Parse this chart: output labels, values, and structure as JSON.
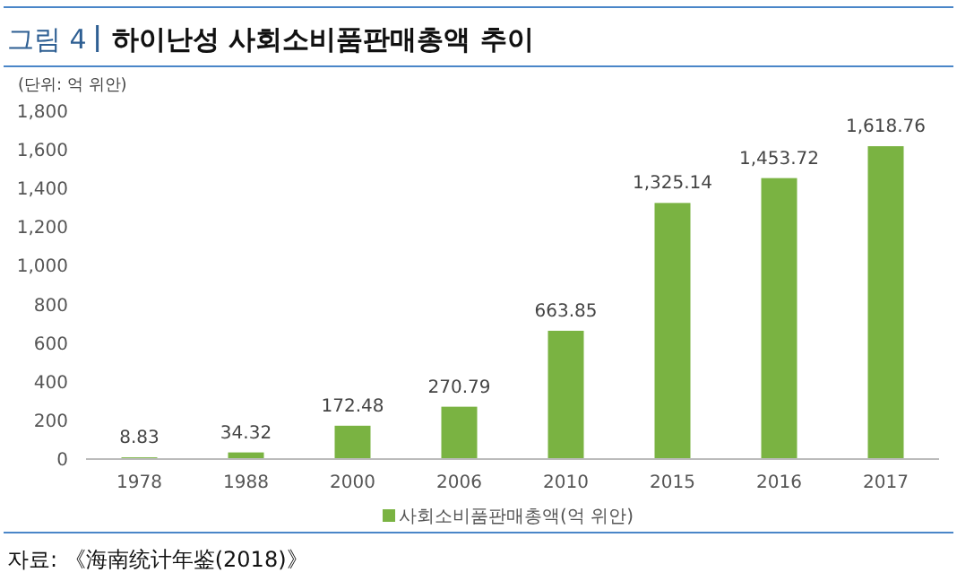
{
  "chart_data": {
    "type": "bar",
    "title": "하이난성 사회소비품판매총액 추이",
    "ylabel": "(단위: 억 위안)",
    "annotations": [
      "그림 4",
      "자료: 《海南统计年鉴(2018)》"
    ],
    "categories": [
      "1978",
      "1988",
      "2000",
      "2006",
      "2010",
      "2015",
      "2016",
      "2017"
    ],
    "series": [
      {
        "name": "사회소비품판매총액(억 위안)",
        "color": "#7ab342",
        "values": [
          8.83,
          34.32,
          172.48,
          270.79,
          663.85,
          1325.14,
          1453.72,
          1618.76
        ],
        "value_labels": [
          "8.83",
          "34.32",
          "172.48",
          "270.79",
          "663.85",
          "1,325.14",
          "1,453.72",
          "1,618.76"
        ]
      }
    ],
    "ylim": [
      0,
      1800
    ],
    "yticks": [
      0,
      200,
      400,
      600,
      800,
      {
        "value": 1000,
        "label": "1,000"
      },
      {
        "value": 1200,
        "label": "1,200"
      },
      {
        "value": 1400,
        "label": "1,400"
      },
      {
        "value": 1600,
        "label": "1,600"
      },
      {
        "value": 1800,
        "label": "1,800"
      }
    ],
    "legend": "bottom",
    "grid": false
  }
}
